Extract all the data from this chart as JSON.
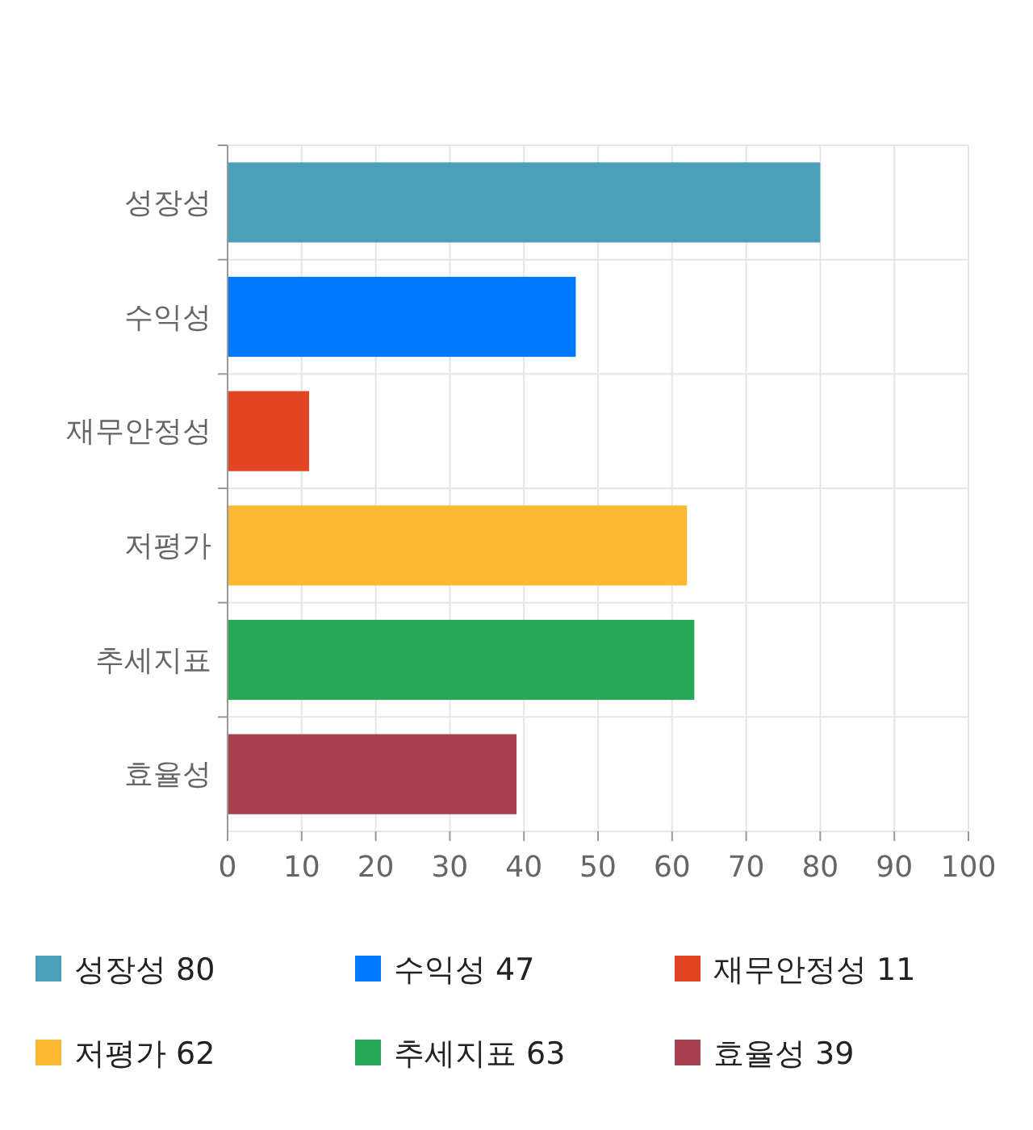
{
  "chart_data": {
    "type": "bar",
    "orientation": "horizontal",
    "stacked": true,
    "categories": [
      "성장성",
      "수익성",
      "재무안정성",
      "저평가",
      "추세지표",
      "효율성"
    ],
    "series": [
      {
        "name": "성장성 80",
        "color": "#4aa0b8",
        "values": [
          80,
          null,
          null,
          null,
          null,
          null
        ]
      },
      {
        "name": "수익성 47",
        "color": "#0078ff",
        "values": [
          null,
          47,
          null,
          null,
          null,
          null
        ]
      },
      {
        "name": "재무안정성 11",
        "color": "#e34424",
        "values": [
          null,
          null,
          11,
          null,
          null,
          null
        ]
      },
      {
        "name": "저평가 62",
        "color": "#ffb833",
        "values": [
          null,
          null,
          null,
          62,
          null,
          null
        ]
      },
      {
        "name": "추세지표 63",
        "color": "#28a755",
        "values": [
          null,
          null,
          null,
          null,
          63,
          null
        ]
      },
      {
        "name": "효율성 39",
        "color": "#a8414f",
        "values": [
          null,
          null,
          null,
          null,
          null,
          39
        ]
      }
    ],
    "xlim": [
      0,
      100
    ],
    "xticks": [
      0,
      10,
      20,
      30,
      40,
      50,
      60,
      70,
      80,
      90,
      100
    ],
    "grid": true,
    "legend": "bottom"
  }
}
